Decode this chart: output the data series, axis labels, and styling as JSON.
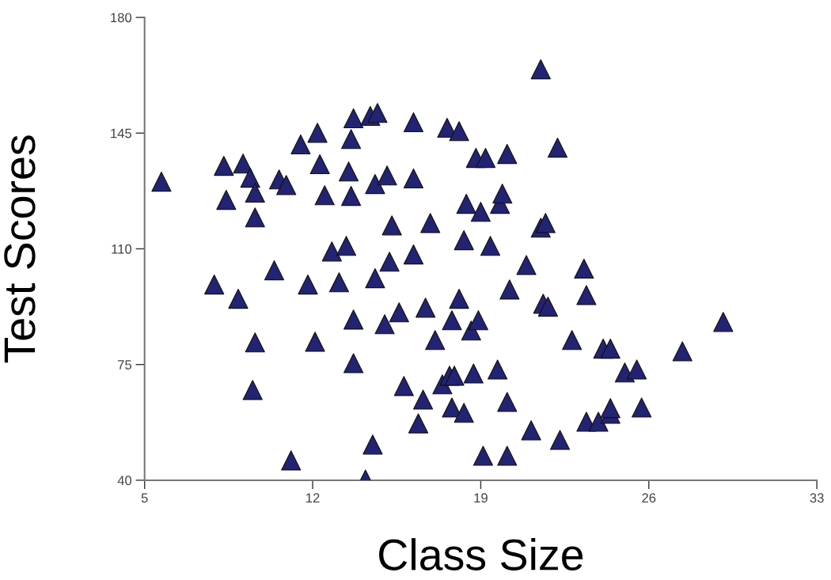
{
  "chart_data": {
    "type": "scatter",
    "xlabel": "Class Size",
    "ylabel": "Test Scores",
    "xlim": [
      5,
      33
    ],
    "xticks": [
      5,
      12,
      19,
      26,
      33
    ],
    "ylim": [
      40,
      180
    ],
    "yticks": [
      40,
      75,
      110,
      145,
      180
    ],
    "grid": false,
    "marker": "triangle",
    "series": [
      {
        "color": "#232373",
        "x": [
          5.7,
          7.9,
          8.3,
          8.4,
          8.9,
          9.1,
          9.4,
          9.6,
          9.6,
          9.6,
          9.5,
          10.4,
          10.6,
          10.9,
          11.1,
          11.5,
          11.8,
          12.2,
          12.3,
          12.1,
          12.5,
          12.8,
          13.1,
          13.4,
          13.5,
          13.6,
          13.6,
          13.7,
          13.7,
          13.7,
          14.2,
          14.4,
          14.5,
          14.6,
          14.6,
          14.7,
          15.0,
          15.1,
          15.2,
          15.3,
          15.6,
          15.8,
          16.2,
          16.2,
          16.2,
          16.4,
          16.6,
          16.7,
          16.9,
          17.1,
          17.4,
          17.6,
          17.7,
          17.8,
          17.9,
          17.8,
          18.1,
          18.1,
          18.3,
          18.3,
          18.4,
          18.6,
          18.7,
          18.8,
          18.9,
          19.0,
          19.1,
          19.2,
          19.4,
          19.7,
          19.8,
          19.9,
          20.1,
          20.1,
          20.1,
          20.2,
          20.9,
          21.1,
          21.5,
          21.5,
          21.7,
          21.6,
          21.8,
          22.2,
          22.3,
          22.8,
          23.3,
          23.4,
          23.4,
          23.9,
          24.1,
          24.4,
          24.4,
          24.4,
          25.0,
          25.5,
          25.7,
          27.4,
          29.1
        ],
        "values": [
          130.3,
          99.2,
          135.1,
          124.8,
          94.9,
          135.8,
          131.5,
          127.0,
          119.5,
          81.7,
          67.3,
          103.5,
          131.0,
          129.3,
          46.0,
          141.6,
          99.2,
          145.1,
          135.6,
          81.9,
          126.2,
          109.2,
          99.9,
          110.9,
          133.4,
          143.2,
          126.0,
          88.6,
          75.4,
          149.5,
          40.2,
          150.2,
          50.8,
          129.6,
          101.1,
          151.1,
          87.2,
          132.2,
          106.1,
          117.1,
          90.8,
          68.5,
          131.3,
          148.3,
          108.3,
          57.2,
          64.4,
          92.2,
          117.8,
          82.4,
          69.0,
          146.6,
          71.6,
          88.4,
          71.6,
          62.0,
          94.9,
          145.6,
          112.6,
          60.4,
          123.6,
          85.3,
          72.3,
          137.5,
          88.4,
          121.2,
          47.4,
          137.5,
          110.9,
          73.5,
          123.6,
          126.7,
          47.4,
          138.7,
          63.7,
          97.7,
          105.1,
          55.1,
          164.3,
          116.4,
          117.8,
          93.4,
          92.5,
          140.6,
          52.2,
          82.4,
          104.0,
          96.0,
          57.7,
          57.7,
          79.8,
          60.1,
          79.8,
          61.8,
          72.6,
          73.5,
          62.0,
          79.0,
          87.9
        ]
      }
    ]
  }
}
